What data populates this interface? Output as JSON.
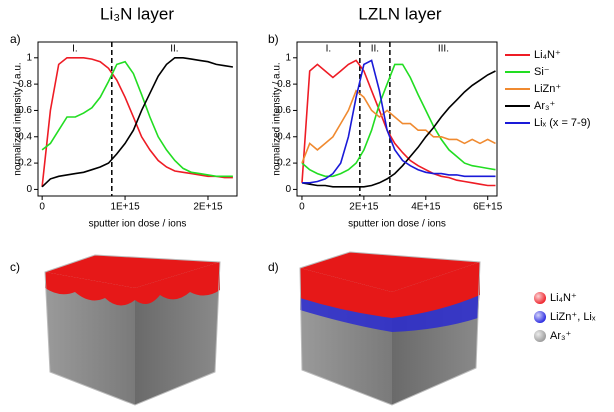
{
  "chart_data": [
    {
      "type": "line",
      "panel_label": "a)",
      "title": "Li₃N layer",
      "xlabel": "sputter ion dose / ions",
      "ylabel": "normalized intensity / a.u.",
      "x": [
        0,
        100000000000000.0,
        200000000000000.0,
        300000000000000.0,
        400000000000000.0,
        500000000000000.0,
        600000000000000.0,
        700000000000000.0,
        800000000000000.0,
        900000000000000.0,
        1000000000000000.0,
        1100000000000000.0,
        1200000000000000.0,
        1300000000000000.0,
        1400000000000000.0,
        1500000000000000.0,
        1600000000000000.0,
        1700000000000000.0,
        1800000000000000.0,
        1900000000000000.0,
        2000000000000000.0,
        2100000000000000.0,
        2200000000000000.0,
        2300000000000000.0
      ],
      "series": [
        {
          "name": "Li₄N⁺",
          "color": "#ee1c25",
          "values": [
            0.02,
            0.6,
            0.95,
            1.0,
            1.0,
            1.0,
            0.99,
            0.97,
            0.92,
            0.83,
            0.7,
            0.55,
            0.4,
            0.3,
            0.22,
            0.17,
            0.14,
            0.13,
            0.12,
            0.11,
            0.1,
            0.1,
            0.09,
            0.09
          ]
        },
        {
          "name": "Si⁻",
          "color": "#22dd22",
          "values": [
            0.3,
            0.35,
            0.45,
            0.55,
            0.55,
            0.58,
            0.62,
            0.7,
            0.82,
            0.95,
            0.97,
            0.88,
            0.72,
            0.55,
            0.4,
            0.3,
            0.22,
            0.16,
            0.13,
            0.12,
            0.11,
            0.1,
            0.1,
            0.1
          ]
        },
        {
          "name": "Ar₃⁺",
          "color": "#000000",
          "values": [
            0.02,
            0.08,
            0.1,
            0.11,
            0.12,
            0.13,
            0.15,
            0.17,
            0.2,
            0.27,
            0.35,
            0.45,
            0.6,
            0.73,
            0.86,
            0.95,
            1.0,
            1.0,
            0.99,
            0.98,
            0.97,
            0.95,
            0.94,
            0.93
          ]
        }
      ],
      "xlim": [
        -50000000000000.0,
        2350000000000000.0
      ],
      "xticks": [
        0,
        {
          "value": 1000000000000000.0,
          "label": "1E+15"
        },
        {
          "value": 2000000000000000.0,
          "label": "2E+15"
        }
      ],
      "ylim": [
        -0.05,
        1.12
      ],
      "yticks": [
        0,
        0.2,
        0.4,
        0.6,
        0.8,
        1
      ],
      "vlines": [
        840000000000000.0
      ],
      "regions": [
        "I.",
        "II."
      ]
    },
    {
      "type": "line",
      "panel_label": "b)",
      "title": "LZLN layer",
      "xlabel": "sputter ion dose / ions",
      "ylabel": "normalized intensity / a.u.",
      "x": [
        0,
        250000000000000.0,
        500000000000000.0,
        750000000000000.0,
        1000000000000000.0,
        1250000000000000.0,
        1500000000000000.0,
        1750000000000000.0,
        2000000000000000.0,
        2250000000000000.0,
        2500000000000000.0,
        2750000000000000.0,
        3000000000000000.0,
        3250000000000000.0,
        3500000000000000.0,
        3750000000000000.0,
        4000000000000000.0,
        4250000000000000.0,
        4500000000000000.0,
        4750000000000000.0,
        5000000000000000.0,
        5250000000000000.0,
        5500000000000000.0,
        5750000000000000.0,
        6000000000000000.0,
        6250000000000000.0
      ],
      "series": [
        {
          "name": "Li₄N⁺",
          "color": "#ee1c25",
          "values": [
            0.05,
            0.9,
            0.95,
            0.9,
            0.85,
            0.9,
            0.95,
            0.98,
            0.9,
            0.75,
            0.6,
            0.45,
            0.35,
            0.28,
            0.22,
            0.18,
            0.15,
            0.12,
            0.1,
            0.09,
            0.07,
            0.06,
            0.05,
            0.04,
            0.03,
            0.03
          ]
        },
        {
          "name": "Si⁻",
          "color": "#22dd22",
          "values": [
            0.2,
            0.15,
            0.12,
            0.1,
            0.1,
            0.12,
            0.15,
            0.2,
            0.3,
            0.45,
            0.65,
            0.8,
            0.95,
            0.95,
            0.85,
            0.72,
            0.6,
            0.48,
            0.38,
            0.3,
            0.25,
            0.2,
            0.18,
            0.17,
            0.16,
            0.15
          ]
        },
        {
          "name": "LiZn⁺",
          "color": "#f08a30",
          "values": [
            0.2,
            0.35,
            0.3,
            0.35,
            0.4,
            0.5,
            0.6,
            0.75,
            0.7,
            0.6,
            0.55,
            0.6,
            0.55,
            0.5,
            0.5,
            0.45,
            0.45,
            0.4,
            0.4,
            0.38,
            0.38,
            0.35,
            0.38,
            0.35,
            0.38,
            0.35
          ]
        },
        {
          "name": "Ar₃⁺",
          "color": "#000000",
          "values": [
            0.05,
            0.04,
            0.03,
            0.03,
            0.02,
            0.02,
            0.02,
            0.02,
            0.02,
            0.03,
            0.05,
            0.08,
            0.12,
            0.18,
            0.25,
            0.32,
            0.4,
            0.47,
            0.55,
            0.62,
            0.68,
            0.74,
            0.79,
            0.83,
            0.87,
            0.9
          ]
        },
        {
          "name": "Liₓ (x = 7-9)",
          "color": "#1a1ad8",
          "values": [
            0.05,
            0.05,
            0.06,
            0.08,
            0.12,
            0.2,
            0.4,
            0.7,
            0.95,
            0.98,
            0.75,
            0.45,
            0.3,
            0.22,
            0.18,
            0.15,
            0.13,
            0.12,
            0.12,
            0.11,
            0.11,
            0.1,
            0.1,
            0.1,
            0.1,
            0.1
          ]
        }
      ],
      "xlim": [
        -160000000000000.0,
        6300000000000000.0
      ],
      "xticks": [
        0,
        {
          "value": 2000000000000000.0,
          "label": "2E+15"
        },
        {
          "value": 4000000000000000.0,
          "label": "4E+15"
        },
        {
          "value": 6000000000000000.0,
          "label": "6E+15"
        }
      ],
      "ylim": [
        -0.05,
        1.12
      ],
      "yticks": [
        0,
        0.2,
        0.4,
        0.6,
        0.8,
        1
      ],
      "vlines": [
        1870000000000000.0,
        2840000000000000.0
      ],
      "regions": [
        "I.",
        "II.",
        "III."
      ],
      "legend": "right"
    }
  ],
  "render_panels": [
    {
      "label": "c)"
    },
    {
      "label": "d)"
    }
  ],
  "render_legend": [
    {
      "label": "Li₄N⁺",
      "color": "#ee1c25"
    },
    {
      "label": "LiZn⁺, Liₓ",
      "color": "#2424e0"
    },
    {
      "label": "Ar₃⁺",
      "color": "#999999"
    }
  ]
}
